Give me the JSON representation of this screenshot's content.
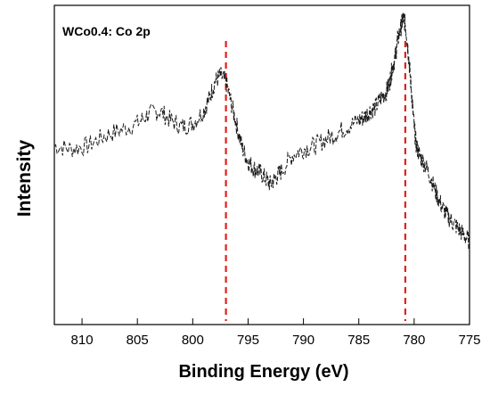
{
  "chart_data": {
    "type": "line",
    "title": "WCo0.4: Co 2p",
    "xlabel": "Binding Energy (eV)",
    "ylabel": "Intensity",
    "x_reversed": true,
    "xlim": [
      812.5,
      775
    ],
    "ylim": [
      0,
      1
    ],
    "y_ticks_shown": false,
    "grid": false,
    "legend": "none",
    "xticks": [
      810,
      805,
      800,
      795,
      790,
      785,
      780,
      775
    ],
    "xtick_labels": [
      "810",
      "805",
      "800",
      "795",
      "790",
      "785",
      "780",
      "775"
    ],
    "series": [
      {
        "color": "#1a1a1a",
        "style": "dashed",
        "x": [
          812.5,
          811,
          809.5,
          808,
          806.5,
          805,
          804,
          803,
          802,
          801,
          800,
          799,
          798.5,
          798,
          797.5,
          797,
          796.5,
          796,
          795.5,
          795,
          794.5,
          794,
          793.5,
          793,
          792.5,
          792,
          791,
          790,
          789,
          788,
          787,
          786,
          785,
          784.5,
          784,
          783.5,
          783,
          782.5,
          782.2,
          782,
          781.7,
          781.5,
          781.2,
          781,
          780.8,
          780.6,
          780.4,
          780.2,
          780,
          779.8,
          779.5,
          779,
          778.5,
          778,
          777.5,
          777,
          776.5,
          776,
          775.5,
          775
        ],
        "y": [
          0.56,
          0.55,
          0.56,
          0.59,
          0.61,
          0.63,
          0.66,
          0.67,
          0.64,
          0.62,
          0.63,
          0.67,
          0.71,
          0.76,
          0.78,
          0.76,
          0.69,
          0.62,
          0.55,
          0.51,
          0.49,
          0.48,
          0.46,
          0.44,
          0.46,
          0.48,
          0.53,
          0.55,
          0.56,
          0.58,
          0.6,
          0.62,
          0.64,
          0.65,
          0.67,
          0.68,
          0.71,
          0.73,
          0.76,
          0.8,
          0.84,
          0.89,
          0.93,
          0.96,
          0.94,
          0.88,
          0.8,
          0.71,
          0.62,
          0.56,
          0.53,
          0.5,
          0.46,
          0.41,
          0.37,
          0.34,
          0.32,
          0.3,
          0.28,
          0.26
        ]
      }
    ],
    "reference_lines": [
      {
        "x": 797,
        "color": "#e3201b",
        "style": "dashed"
      },
      {
        "x": 780.8,
        "color": "#e3201b",
        "style": "dashed"
      }
    ]
  }
}
